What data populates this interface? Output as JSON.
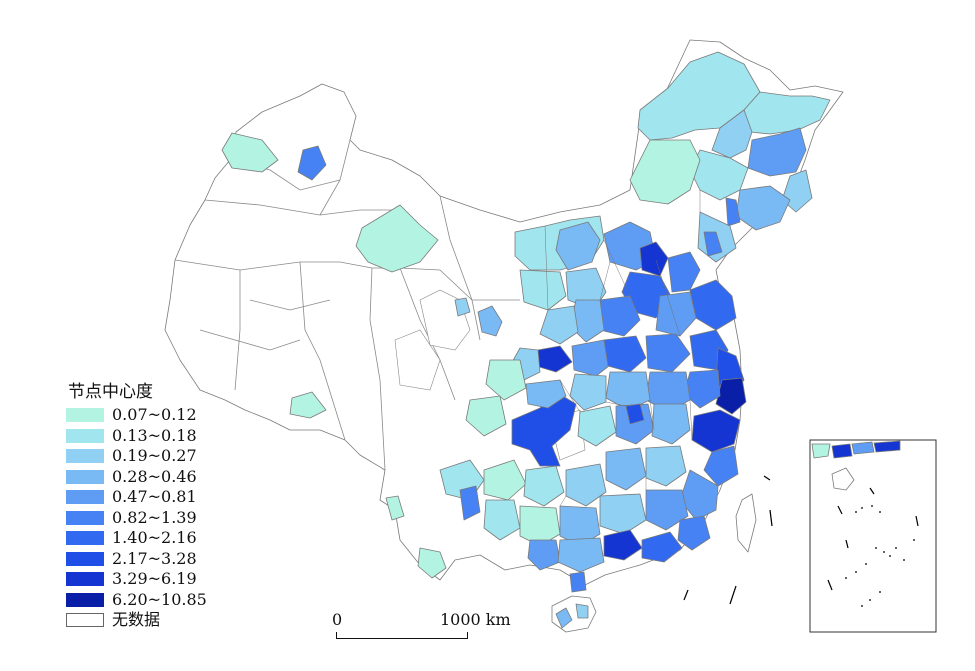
{
  "legend": {
    "title": "节点中心度",
    "classes": [
      {
        "label": "0.07~0.12",
        "color": "#b3f3e1"
      },
      {
        "label": "0.13~0.18",
        "color": "#a1e5ee"
      },
      {
        "label": "0.19~0.27",
        "color": "#8fd0f3"
      },
      {
        "label": "0.28~0.46",
        "color": "#79b9f4"
      },
      {
        "label": "0.47~0.81",
        "color": "#5f9df5"
      },
      {
        "label": "0.82~1.39",
        "color": "#4682f3"
      },
      {
        "label": "1.40~2.16",
        "color": "#3169f0"
      },
      {
        "label": "2.17~3.28",
        "color": "#1f4fe6"
      },
      {
        "label": "3.29~6.19",
        "color": "#1535d2"
      },
      {
        "label": "6.20~10.85",
        "color": "#0a1fa8"
      }
    ],
    "nodata": {
      "label": "无数据",
      "color": "#ffffff"
    }
  },
  "scale_bar": {
    "start_label": "0",
    "end_label": "1000 km"
  },
  "inset": {
    "name": "south-china-sea-inset"
  }
}
